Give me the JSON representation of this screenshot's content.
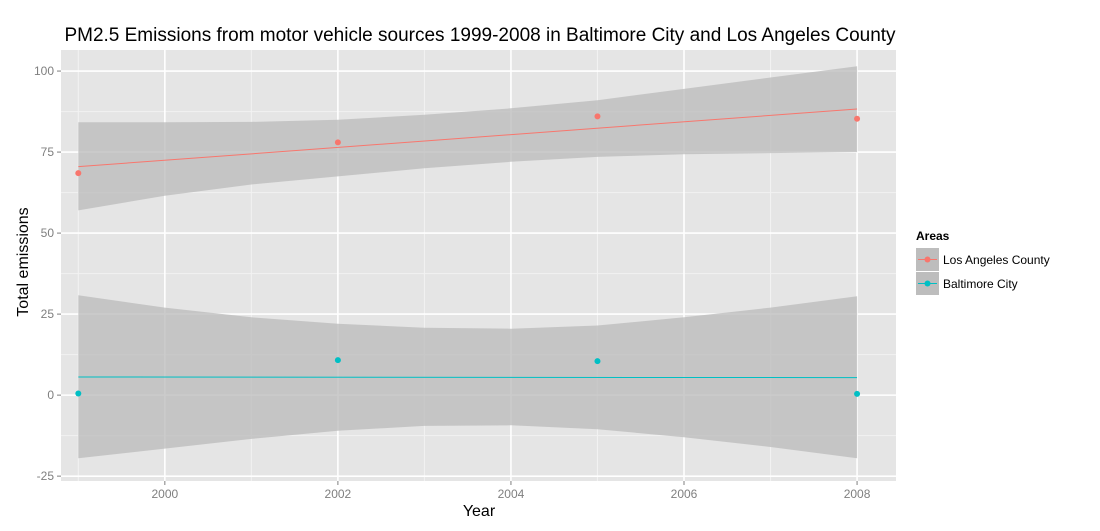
{
  "chart_data": {
    "type": "scatter",
    "title": "PM2.5 Emissions from motor vehicle sources 1999-2008 in Baltimore City and Los Angeles County",
    "xlabel": "Year",
    "ylabel": "Total emissions",
    "xlim": [
      1998.8,
      2008.45
    ],
    "ylim": [
      -26.5,
      106.5
    ],
    "xticks": [
      2000,
      2002,
      2004,
      2006,
      2008
    ],
    "yticks": [
      -25,
      0,
      25,
      50,
      75,
      100
    ],
    "grid": true,
    "legend": {
      "title": "Areas",
      "position": "right"
    },
    "series": [
      {
        "name": "Los Angeles County",
        "color": "#F8766D",
        "x": [
          1999,
          2002,
          2005,
          2008
        ],
        "y": [
          68.5,
          78.0,
          86.0,
          85.3
        ],
        "fit": {
          "x": [
            1999,
            2008
          ],
          "y": [
            70.5,
            88.3
          ]
        },
        "band": {
          "x": [
            1999,
            2000,
            2001,
            2002,
            2003,
            2004,
            2005,
            2006,
            2007,
            2008
          ],
          "lower": [
            57.0,
            61.5,
            65.0,
            67.5,
            70.0,
            72.0,
            73.5,
            74.3,
            74.7,
            75.0
          ],
          "upper": [
            84.2,
            84.2,
            84.3,
            85.0,
            86.5,
            88.5,
            91.0,
            94.5,
            98.0,
            101.5
          ]
        }
      },
      {
        "name": "Baltimore City",
        "color": "#00BFC4",
        "x": [
          1999,
          2002,
          2005,
          2008
        ],
        "y": [
          0.5,
          10.8,
          10.5,
          0.4
        ],
        "fit": {
          "x": [
            1999,
            2008
          ],
          "y": [
            5.6,
            5.4
          ]
        },
        "band": {
          "x": [
            1999,
            2000,
            2001,
            2002,
            2003,
            2004,
            2005,
            2006,
            2007,
            2008
          ],
          "lower": [
            -19.5,
            -16.5,
            -13.5,
            -11.0,
            -9.5,
            -9.3,
            -10.5,
            -13.0,
            -16.0,
            -19.5
          ],
          "upper": [
            30.8,
            27.0,
            24.0,
            22.0,
            20.8,
            20.5,
            21.5,
            24.0,
            27.0,
            30.5
          ]
        }
      }
    ]
  },
  "style": {
    "panel_background": "#E5E5E5",
    "grid_color": "#ffffff",
    "band_color": "#BDBDBD"
  }
}
